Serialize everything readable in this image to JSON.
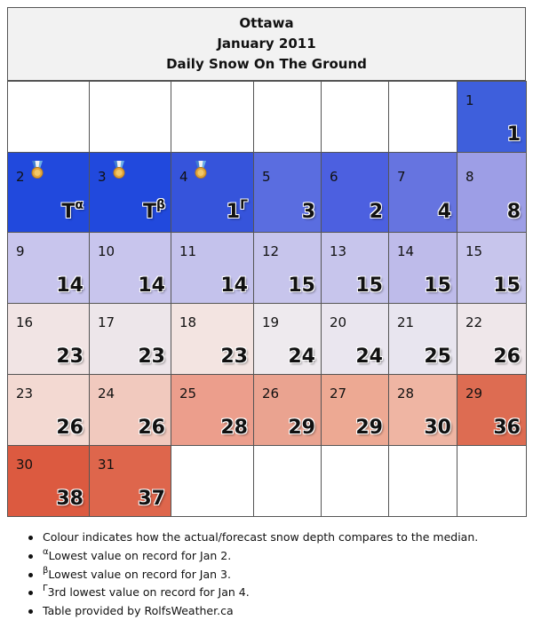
{
  "header": {
    "city": "Ottawa",
    "period": "January 2011",
    "subtitle": "Daily Snow On The Ground"
  },
  "weekday_rows": [
    [
      null,
      null,
      null,
      null,
      null,
      null,
      {
        "day": "1",
        "value": "1",
        "color": "#3e5fdc"
      }
    ],
    [
      {
        "day": "2",
        "value": "T",
        "sup": "α",
        "color": "#2149dd",
        "icon": "medal-icon"
      },
      {
        "day": "3",
        "value": "T",
        "sup": "β",
        "color": "#2149dd",
        "icon": "medal-icon"
      },
      {
        "day": "4",
        "value": "1",
        "sup": "Γ",
        "color": "#3654db",
        "icon": "medal-icon"
      },
      {
        "day": "5",
        "value": "3",
        "color": "#5a6de0"
      },
      {
        "day": "6",
        "value": "2",
        "color": "#4c60e0"
      },
      {
        "day": "7",
        "value": "4",
        "color": "#6674e0"
      },
      {
        "day": "8",
        "value": "8",
        "color": "#9d9ee6"
      }
    ],
    [
      {
        "day": "9",
        "value": "14",
        "color": "#c8c5ed"
      },
      {
        "day": "10",
        "value": "14",
        "color": "#c8c5ed"
      },
      {
        "day": "11",
        "value": "14",
        "color": "#c4c2ec"
      },
      {
        "day": "12",
        "value": "15",
        "color": "#c7c5ec"
      },
      {
        "day": "13",
        "value": "15",
        "color": "#c7c5ec"
      },
      {
        "day": "14",
        "value": "15",
        "color": "#bebbea"
      },
      {
        "day": "15",
        "value": "15",
        "color": "#c7c5ec"
      }
    ],
    [
      {
        "day": "16",
        "value": "23",
        "color": "#f1e4e4"
      },
      {
        "day": "17",
        "value": "23",
        "color": "#ede6ea"
      },
      {
        "day": "18",
        "value": "23",
        "color": "#f3e4e1"
      },
      {
        "day": "19",
        "value": "24",
        "color": "#eeeaee"
      },
      {
        "day": "20",
        "value": "24",
        "color": "#eae6ef"
      },
      {
        "day": "21",
        "value": "25",
        "color": "#e8e5ef"
      },
      {
        "day": "22",
        "value": "26",
        "color": "#efe7ea"
      }
    ],
    [
      {
        "day": "23",
        "value": "26",
        "color": "#f3d9d2"
      },
      {
        "day": "24",
        "value": "26",
        "color": "#f1c9be"
      },
      {
        "day": "25",
        "value": "28",
        "color": "#ec9e8c"
      },
      {
        "day": "26",
        "value": "29",
        "color": "#eaa390"
      },
      {
        "day": "27",
        "value": "29",
        "color": "#eda993"
      },
      {
        "day": "28",
        "value": "30",
        "color": "#efb5a3"
      },
      {
        "day": "29",
        "value": "36",
        "color": "#dd6c52"
      }
    ],
    [
      {
        "day": "30",
        "value": "38",
        "color": "#dc5a40"
      },
      {
        "day": "31",
        "value": "37",
        "color": "#de664c"
      },
      null,
      null,
      null,
      null,
      null
    ]
  ],
  "notes": [
    {
      "sup": "",
      "text": "Colour indicates how the actual/forecast snow depth compares to the median."
    },
    {
      "sup": "α",
      "text": "Lowest value on record for Jan 2."
    },
    {
      "sup": "β",
      "text": "Lowest value on record for Jan 3."
    },
    {
      "sup": "Γ",
      "text": "3rd lowest value on record for Jan 4."
    },
    {
      "sup": "",
      "text": "Table provided by RolfsWeather.ca"
    }
  ]
}
